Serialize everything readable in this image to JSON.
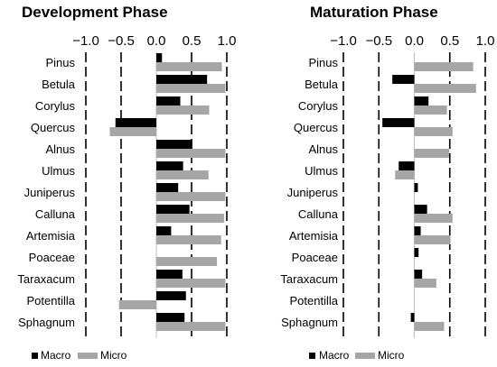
{
  "colors": {
    "macro": "#000000",
    "micro": "#a6a6a6",
    "axis": "#000000"
  },
  "chart_data": [
    {
      "type": "bar",
      "orientation": "horizontal",
      "title": "Development Phase",
      "xlim": [
        -1.0,
        1.0
      ],
      "ticks": [
        -1.0,
        -0.5,
        0.0,
        0.5,
        1.0
      ],
      "tick_labels": [
        "−1.0",
        "−0.5",
        "0.0",
        "0.5",
        "1.0"
      ],
      "grid": "dashed vertical lines at -1.0, -0.5, 0.5, 1.0",
      "legend": "bottom",
      "categories": [
        "Pinus",
        "Betula",
        "Corylus",
        "Quercus",
        "Alnus",
        "Ulmus",
        "Juniperus",
        "Calluna",
        "Artemisia",
        "Poaceae",
        "Taraxacum",
        "Potentilla",
        "Sphagnum"
      ],
      "series": [
        {
          "name": "Macro",
          "values": [
            0.08,
            0.72,
            0.34,
            -0.58,
            0.51,
            0.38,
            0.31,
            0.47,
            0.21,
            0.0,
            0.37,
            0.42,
            0.4
          ]
        },
        {
          "name": "Micro",
          "values": [
            0.93,
            0.98,
            0.75,
            -0.66,
            0.98,
            0.74,
            0.98,
            0.96,
            0.92,
            0.86,
            0.98,
            -0.53,
            0.98
          ]
        }
      ]
    },
    {
      "type": "bar",
      "orientation": "horizontal",
      "title": "Maturation Phase",
      "xlim": [
        -1.0,
        1.0
      ],
      "ticks": [
        -1.0,
        -0.5,
        0.0,
        0.5,
        1.0
      ],
      "tick_labels": [
        "−1.0",
        "−0.5",
        "0.0",
        "0.5",
        "1.0"
      ],
      "grid": "dashed vertical lines at -1.0, -0.5, 0.5, 1.0",
      "legend": "bottom",
      "categories": [
        "Pinus",
        "Betula",
        "Corylus",
        "Quercus",
        "Alnus",
        "Ulmus",
        "Juniperus",
        "Calluna",
        "Artemisia",
        "Poaceae",
        "Taraxacum",
        "Potentilla",
        "Sphagnum"
      ],
      "series": [
        {
          "name": "Macro",
          "values": [
            0.0,
            -0.31,
            0.2,
            -0.45,
            0.0,
            -0.22,
            0.05,
            0.18,
            0.09,
            0.06,
            0.11,
            0.0,
            -0.05
          ]
        },
        {
          "name": "Micro",
          "values": [
            0.83,
            0.87,
            0.46,
            0.54,
            0.49,
            -0.27,
            0.0,
            0.54,
            0.51,
            0.0,
            0.31,
            0.0,
            0.42
          ]
        }
      ]
    }
  ]
}
